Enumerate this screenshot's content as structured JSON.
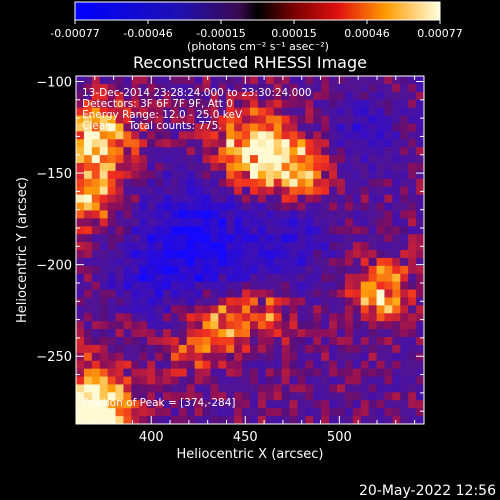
{
  "colorbar": {
    "ticks": [
      "-0.00077",
      "-0.00046",
      "-0.00015",
      "0.00015",
      "0.00046",
      "0.00077"
    ],
    "unit_label": "(photons cm⁻² s⁻¹ asec⁻²)"
  },
  "chart_data": {
    "type": "heatmap",
    "title": "Reconstructed RHESSI Image",
    "xlabel": "Heliocentric X (arcsec)",
    "ylabel": "Heliocentric Y (arcsec)",
    "xlim": [
      360,
      545
    ],
    "ylim": [
      -287,
      -97
    ],
    "xticks": [
      400,
      450,
      500
    ],
    "yticks": [
      -100,
      -150,
      -200,
      -250
    ],
    "color_range": [
      -0.00077,
      0.00077
    ],
    "grid": false,
    "annotations": [
      "13-Dec-2014 23:28:24.000 to 23:30:24.000",
      "Detectors: 3F 6F 7F 9F, Att 0",
      "Energy Range: 12.0 - 25.0 keV",
      "Clean     Total counts: 775.",
      "Position of Peak = [374,-284]"
    ],
    "peak": {
      "x": 374,
      "y": -284
    }
  },
  "footer": {
    "timestamp": "20-May-2022 12:56"
  }
}
